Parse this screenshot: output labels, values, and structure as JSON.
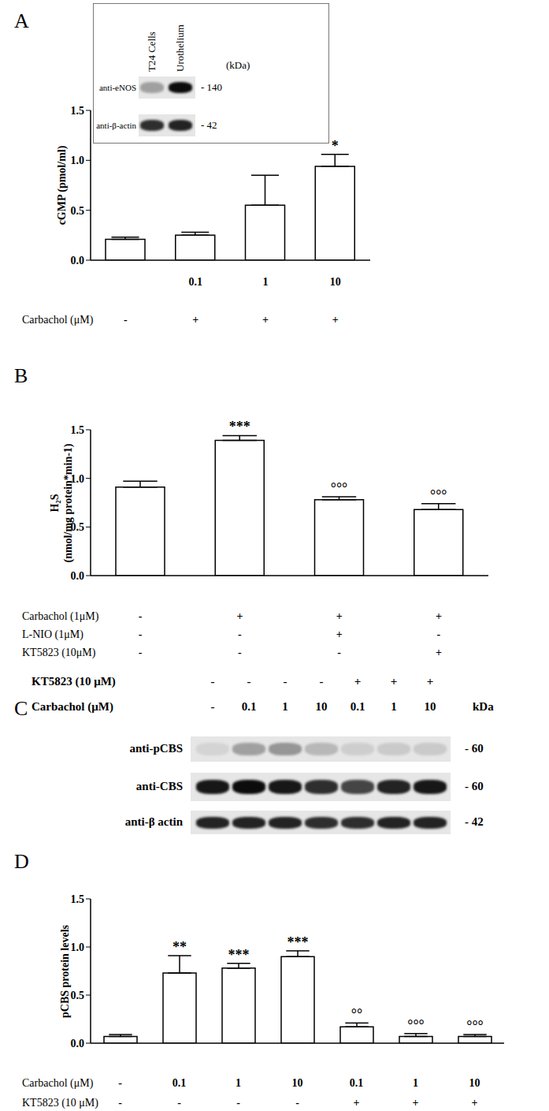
{
  "chart_data": [
    {
      "type": "bar",
      "panel": "A",
      "ylabel": "cGMP (pmol/ml)",
      "categories": [
        null,
        "0.1",
        "1",
        "10"
      ],
      "values": [
        0.21,
        0.25,
        0.55,
        0.94
      ],
      "errors": [
        0.02,
        0.03,
        0.3,
        0.12
      ],
      "significance": [
        null,
        null,
        null,
        "*"
      ],
      "conditions": [
        {
          "label": "Carbachol (μM)",
          "marks": [
            "-",
            "+",
            "+",
            "+"
          ]
        }
      ],
      "color": "#ffffff",
      "ylim": [
        0,
        1.5
      ],
      "yticks": [
        {
          "value": 0,
          "label": "0.0"
        },
        {
          "value": 0.5,
          "label": "0.5"
        },
        {
          "value": 1,
          "label": "1.0"
        },
        {
          "value": 1.5,
          "label": "1.5"
        }
      ],
      "grid": false
    },
    {
      "type": "bar",
      "panel": "B",
      "ylabel": [
        "H₂S",
        "(nmol/mg protein*min-1)"
      ],
      "categories": [
        null,
        null,
        null,
        null
      ],
      "values": [
        0.91,
        1.39,
        0.78,
        0.68
      ],
      "errors": [
        0.06,
        0.05,
        0.03,
        0.06
      ],
      "significance": [
        null,
        "***",
        "°°°",
        "°°°"
      ],
      "conditions": [
        {
          "label": "Carbachol (1μM)",
          "marks": [
            "-",
            "+",
            "+",
            "+"
          ]
        },
        {
          "label": "L-NIO (1μM)",
          "marks": [
            "-",
            "-",
            "+",
            "-"
          ]
        },
        {
          "label": "KT5823 (10μM)",
          "marks": [
            "-",
            "-",
            "-",
            "+"
          ]
        }
      ],
      "color": "#ffffff",
      "ylim": [
        0,
        1.5
      ],
      "yticks": [
        {
          "value": 0,
          "label": "0.0"
        },
        {
          "value": 0.5,
          "label": "0.5"
        },
        {
          "value": 1,
          "label": "1.0"
        },
        {
          "value": 1.5,
          "label": "1.5"
        }
      ],
      "grid": false
    },
    {
      "type": "bar",
      "panel": "D",
      "ylabel": "pCBS protein levels",
      "categories": [
        null,
        null,
        null,
        null,
        null,
        null,
        null
      ],
      "values": [
        0.07,
        0.73,
        0.78,
        0.9,
        0.17,
        0.07,
        0.07
      ],
      "errors": [
        0.02,
        0.18,
        0.05,
        0.06,
        0.04,
        0.03,
        0.02
      ],
      "significance": [
        null,
        "**",
        "***",
        "***",
        "°°",
        "°°°",
        "°°°"
      ],
      "conditions": [
        {
          "label": "Carbachol (μM)",
          "marks": [
            "-",
            "0.1",
            "1",
            "10",
            "0.1",
            "1",
            "10"
          ]
        },
        {
          "label": "KT5823 (10 μM)",
          "marks": [
            "-",
            "-",
            "-",
            "-",
            "+",
            "+",
            "+"
          ]
        }
      ],
      "color": "#ffffff",
      "ylim": [
        0,
        1.5
      ],
      "yticks": [
        {
          "value": 0,
          "label": "0.0"
        },
        {
          "value": 0.5,
          "label": "0.5"
        },
        {
          "value": 1,
          "label": "1.0"
        },
        {
          "value": 1.5,
          "label": "1.5"
        }
      ],
      "grid": false
    }
  ],
  "blots": [
    {
      "panel": "A",
      "lanes": [
        "T24 Cells",
        "Urothelium"
      ],
      "unit": "(kDa)",
      "rows": [
        {
          "label": "anti-eNOS",
          "kda": "- 140",
          "intensity": [
            0.3,
            0.95
          ]
        },
        {
          "label": "anti-β-actin",
          "kda": "- 42",
          "intensity": [
            0.8,
            0.85
          ]
        }
      ]
    },
    {
      "panel": "C",
      "conditions": [
        {
          "label": "KT5823 (10 μM)",
          "marks": [
            "-",
            "-",
            "-",
            "-",
            "+",
            "+",
            "+"
          ]
        },
        {
          "label": "Carbachol (μM)",
          "marks": [
            "-",
            "0.1",
            "1",
            "10",
            "0.1",
            "1",
            "10"
          ]
        }
      ],
      "unit": "kDa",
      "rows": [
        {
          "label": "anti-pCBS",
          "kda": "- 60",
          "intensity": [
            0.08,
            0.3,
            0.35,
            0.2,
            0.1,
            0.12,
            0.12
          ]
        },
        {
          "label": "anti-CBS",
          "kda": "- 60",
          "intensity": [
            0.9,
            0.95,
            0.9,
            0.8,
            0.7,
            0.85,
            0.9
          ]
        },
        {
          "label": "anti-β actin",
          "kda": "- 42",
          "intensity": [
            0.85,
            0.85,
            0.85,
            0.8,
            0.8,
            0.85,
            0.85
          ]
        }
      ]
    }
  ]
}
